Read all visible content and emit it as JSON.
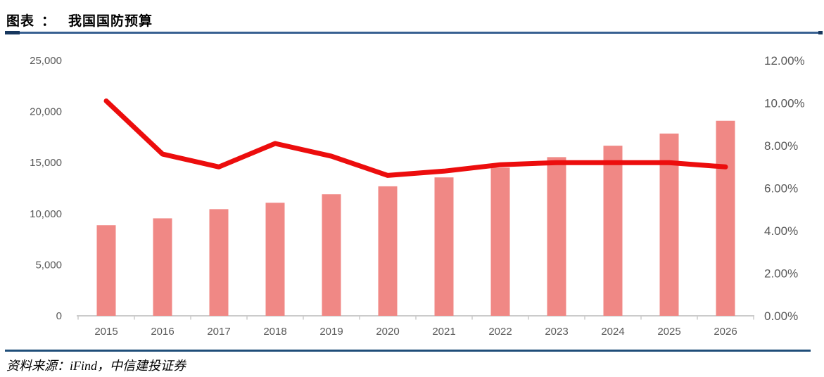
{
  "header": {
    "label": "图表",
    "colon": "：",
    "title": "我国国防预算"
  },
  "footer": {
    "text": "资料来源：iFind，中信建投证券"
  },
  "colors": {
    "bar": "#F08885",
    "line": "#EC0D0D",
    "axis_text": "#595959",
    "axis_line": "#CBCBCB",
    "header_rule_main": "#376091",
    "header_rule_accent": "#17375E",
    "footer_rule": "#1F4E79"
  },
  "chart_data": {
    "type": "bar",
    "title": "我国国防预算",
    "categories": [
      "2015",
      "2016",
      "2017",
      "2018",
      "2019",
      "2020",
      "2021",
      "2022",
      "2023",
      "2024",
      "2025",
      "2026"
    ],
    "series": [
      {
        "id": "defense-budget",
        "type": "bar",
        "axis": "left",
        "values": [
          8869,
          9544,
          10444,
          11070,
          11899,
          12680,
          13553,
          14505,
          15537,
          16655,
          17847,
          19096
        ]
      },
      {
        "id": "yoy-growth-pct",
        "type": "line",
        "axis": "right",
        "values": [
          10.1,
          7.6,
          7.0,
          8.1,
          7.5,
          6.6,
          6.8,
          7.1,
          7.2,
          7.2,
          7.2,
          7.0
        ]
      }
    ],
    "left_axis": {
      "min": 0,
      "max": 25000,
      "step": 5000,
      "tick_labels": [
        "0",
        "5,000",
        "10,000",
        "15,000",
        "20,000",
        "25,000"
      ]
    },
    "right_axis": {
      "min": 0,
      "max": 12,
      "step": 2,
      "tick_labels": [
        "0.00%",
        "2.00%",
        "4.00%",
        "6.00%",
        "8.00%",
        "10.00%",
        "12.00%"
      ]
    },
    "grid": false,
    "legend": null
  }
}
